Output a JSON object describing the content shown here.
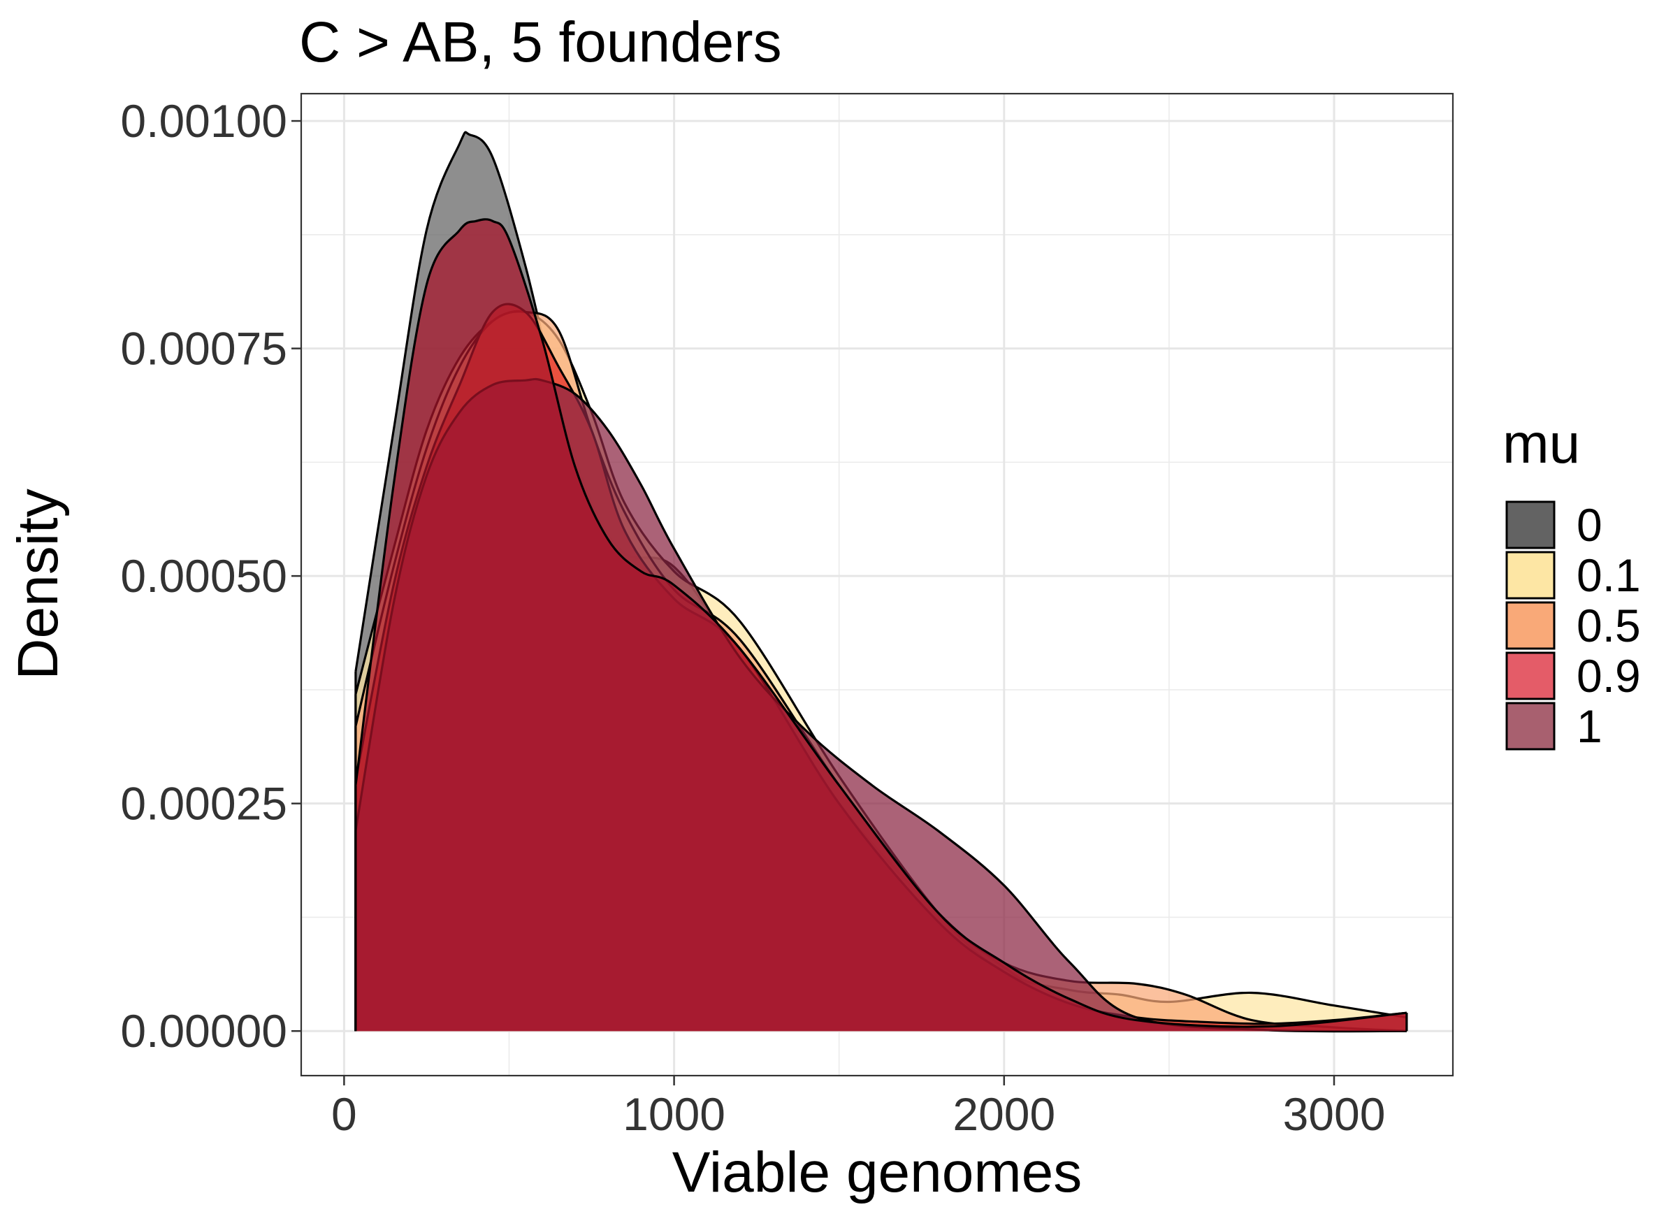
{
  "chart_data": {
    "type": "area",
    "subtype": "density",
    "title": "C > AB, 5 founders",
    "xlabel": "Viable genomes",
    "ylabel": "Density",
    "xlim": [
      -130,
      3360
    ],
    "ylim": [
      -4.9e-05,
      0.00103
    ],
    "x_ticks": [
      0,
      1000,
      2000,
      3000
    ],
    "x_tick_labels": [
      "0",
      "1000",
      "2000",
      "3000"
    ],
    "y_ticks": [
      0,
      0.00025,
      0.0005,
      0.00075,
      0.001
    ],
    "y_tick_labels": [
      "0.00000",
      "0.00025",
      "0.00050",
      "0.00075",
      "0.00100"
    ],
    "grid": true,
    "legend": {
      "title": "mu",
      "position": "right"
    },
    "series": [
      {
        "name": "0",
        "color": "#636363",
        "x": [
          35,
          150,
          250,
          350,
          380,
          450,
          550,
          650,
          750,
          850,
          1000,
          1200,
          1500,
          1800,
          2000,
          2200,
          2500,
          2800,
          3000,
          3220
        ],
        "y": [
          0.000395,
          0.00066,
          0.00088,
          0.000975,
          0.000985,
          0.00096,
          0.00084,
          0.00069,
          0.00058,
          0.000525,
          0.00051,
          0.00041,
          0.00025,
          0.00013,
          7e-05,
          2.8e-05,
          5e-06,
          1e-06,
          2e-07,
          0.0
        ]
      },
      {
        "name": "0.1",
        "color": "#FDE6A4",
        "x": [
          35,
          150,
          250,
          350,
          450,
          550,
          650,
          750,
          850,
          1000,
          1200,
          1500,
          1800,
          2000,
          2200,
          2350,
          2500,
          2750,
          3000,
          3220
        ],
        "y": [
          0.00037,
          0.00053,
          0.00066,
          0.00074,
          0.00078,
          0.00079,
          0.00076,
          0.00068,
          0.00058,
          0.000505,
          0.00045,
          0.00028,
          0.00013,
          6.5e-05,
          4.5e-05,
          4e-05,
          3.2e-05,
          4.2e-05,
          2.8e-05,
          1.5e-05
        ]
      },
      {
        "name": "0.5",
        "color": "#F9A978",
        "x": [
          35,
          150,
          250,
          350,
          450,
          550,
          650,
          750,
          850,
          1000,
          1200,
          1500,
          1800,
          2000,
          2200,
          2400,
          2550,
          2750,
          3000,
          3220
        ],
        "y": [
          0.000335,
          0.00051,
          0.00064,
          0.00073,
          0.00078,
          0.00079,
          0.00077,
          0.00066,
          0.00057,
          0.000485,
          0.00043,
          0.00027,
          0.00013,
          7.5e-05,
          5.5e-05,
          5.2e-05,
          4e-05,
          1.2e-05,
          4e-06,
          0.0
        ]
      },
      {
        "name": "0.9",
        "color": "#E32821",
        "x": [
          35,
          150,
          250,
          350,
          450,
          550,
          650,
          750,
          850,
          1000,
          1200,
          1500,
          1800,
          2000,
          2200,
          2400,
          2600,
          2800,
          3000,
          3220
        ],
        "y": [
          0.000275,
          0.00049,
          0.00062,
          0.00071,
          0.00079,
          0.00079,
          0.00073,
          0.00066,
          0.00055,
          0.000475,
          0.00042,
          0.00025,
          0.00012,
          6.5e-05,
          3e-05,
          1.5e-05,
          1e-05,
          8e-06,
          1.2e-05,
          2e-05
        ]
      },
      {
        "name": "1",
        "color": "#8A2642",
        "x": [
          35,
          150,
          250,
          350,
          450,
          550,
          600,
          700,
          800,
          900,
          1000,
          1200,
          1400,
          1600,
          1800,
          2000,
          2200,
          2400,
          2800,
          3220
        ],
        "y": [
          0.00022,
          0.00047,
          0.00061,
          0.00068,
          0.00071,
          0.000715,
          0.000715,
          0.0007,
          0.00066,
          0.0006,
          0.00053,
          0.00041,
          0.00033,
          0.00027,
          0.00022,
          0.00016,
          7.5e-05,
          1.5e-05,
          1e-06,
          0.0
        ]
      },
      {
        "name": "0.9",
        "color": "#A8132A",
        "x": [
          35,
          150,
          250,
          350,
          400,
          450,
          500,
          600,
          700,
          800,
          900,
          1000,
          1200,
          1500,
          1800,
          2000,
          2200,
          2400,
          2800,
          3220
        ],
        "y": [
          0.00027,
          0.0006,
          0.00082,
          0.00088,
          0.00089,
          0.00089,
          0.00087,
          0.00076,
          0.00062,
          0.00054,
          0.000505,
          0.00049,
          0.00042,
          0.00027,
          0.00013,
          7.5e-05,
          3.5e-05,
          1.2e-05,
          5e-06,
          2e-05
        ]
      }
    ],
    "legend_entries": [
      {
        "label": "0",
        "color": "#636363"
      },
      {
        "label": "0.1",
        "color": "#FDE6A4"
      },
      {
        "label": "0.5",
        "color": "#F9A978"
      },
      {
        "label": "0.9",
        "color": "#E45C68"
      },
      {
        "label": "1",
        "color": "#A8606F"
      }
    ],
    "annotations": [
      "C > AB, 5 founders"
    ]
  }
}
